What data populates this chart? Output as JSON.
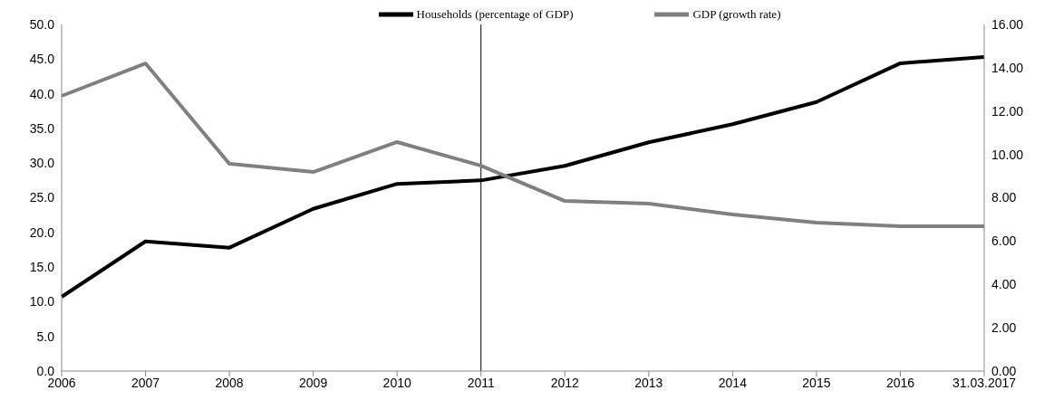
{
  "chart_data": {
    "type": "line",
    "categories": [
      "2006",
      "2007",
      "2008",
      "2009",
      "2010",
      "2011",
      "2012",
      "2013",
      "2014",
      "2015",
      "2016",
      "31.03.2017"
    ],
    "series": [
      {
        "name": "Households (percentage of GDP)",
        "color": "#000000",
        "values": [
          10.7,
          18.7,
          17.8,
          23.4,
          27.0,
          27.5,
          29.6,
          33.0,
          35.6,
          38.8,
          44.4,
          45.3
        ]
      },
      {
        "name": "GDP (growth rate)",
        "color": "#808080",
        "axis": "y2",
        "values": [
          12.7,
          14.2,
          9.57,
          9.19,
          10.57,
          9.48,
          7.85,
          7.73,
          7.23,
          6.85,
          6.68,
          6.68
        ]
      }
    ],
    "ylim": [
      0,
      50
    ],
    "yticks": [
      {
        "value": 0,
        "label": "0.0"
      },
      {
        "value": 5,
        "label": "5.0"
      },
      {
        "value": 10,
        "label": "10.0"
      },
      {
        "value": 15,
        "label": "15.0"
      },
      {
        "value": 20,
        "label": "20.0"
      },
      {
        "value": 25,
        "label": "25.0"
      },
      {
        "value": 30,
        "label": "30.0"
      },
      {
        "value": 35,
        "label": "35.0"
      },
      {
        "value": 40,
        "label": "40.0"
      },
      {
        "value": 45,
        "label": "45.0"
      },
      {
        "value": 50,
        "label": "50.0"
      }
    ],
    "y2lim": [
      0,
      16
    ],
    "y2ticks": [
      {
        "value": 0,
        "label": "0.00"
      },
      {
        "value": 2,
        "label": "2.00"
      },
      {
        "value": 4,
        "label": "4.00"
      },
      {
        "value": 6,
        "label": "6.00"
      },
      {
        "value": 8,
        "label": "8.00"
      },
      {
        "value": 10,
        "label": "10.00"
      },
      {
        "value": 12,
        "label": "12.00"
      },
      {
        "value": 14,
        "label": "14.00"
      },
      {
        "value": 16,
        "label": "16.00"
      }
    ],
    "ref_lines": [
      {
        "axis": "x",
        "value": "2011",
        "color": "#000000"
      }
    ],
    "grid": false,
    "legend": "top",
    "marker": "none",
    "line_style": "solid"
  }
}
